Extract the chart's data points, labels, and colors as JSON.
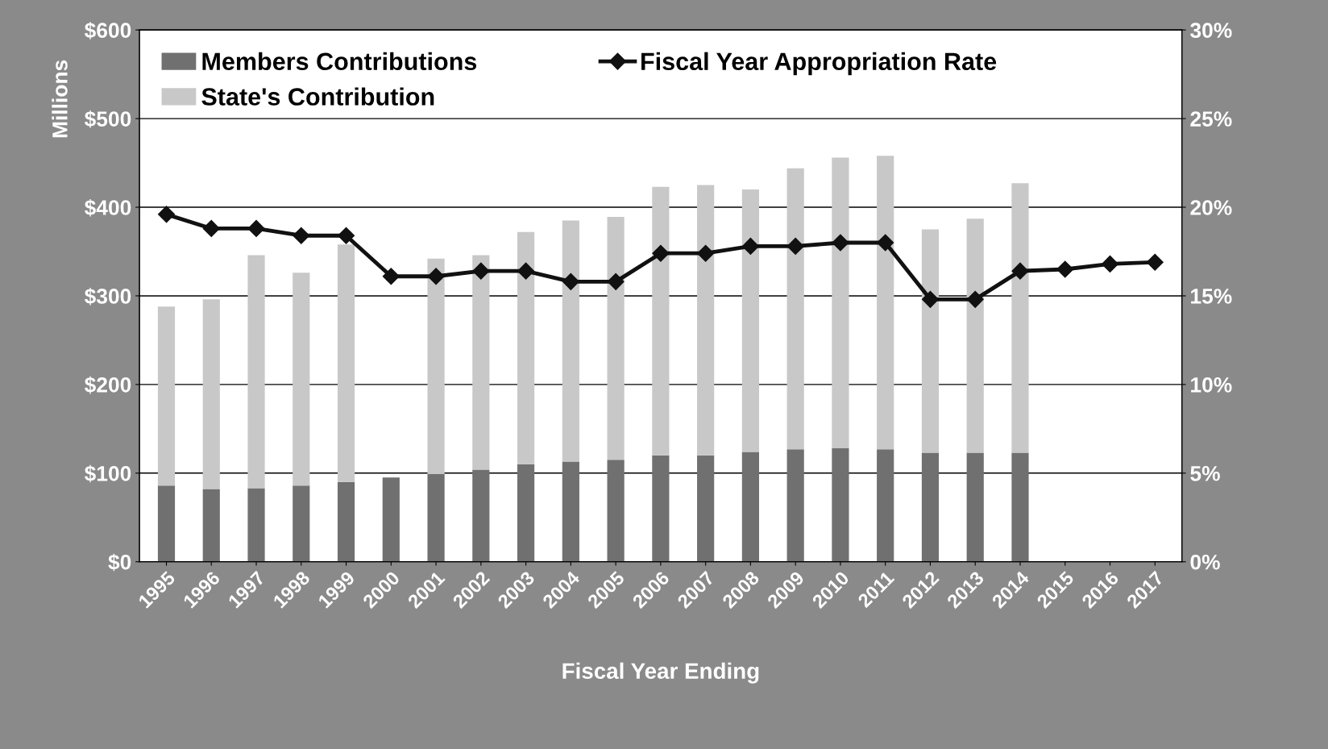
{
  "chart_data": {
    "type": "bar",
    "stacked": true,
    "xlabel": "Fiscal Year Ending",
    "ylabel": "Millions",
    "categories": [
      "1995",
      "1996",
      "1997",
      "1998",
      "1999",
      "2000",
      "2001",
      "2002",
      "2003",
      "2004",
      "2005",
      "2006",
      "2007",
      "2008",
      "2009",
      "2010",
      "2011",
      "2012",
      "2013",
      "2014",
      "2015",
      "2016",
      "2017"
    ],
    "series": [
      {
        "name": "Members Contributions",
        "color": "#707070",
        "values": [
          86,
          82,
          83,
          86,
          90,
          95,
          99,
          104,
          110,
          113,
          115,
          120,
          120,
          124,
          127,
          128,
          127,
          123,
          123,
          123,
          null,
          null,
          null
        ]
      },
      {
        "name": "State's Contribution",
        "color": "#c8c8c8",
        "values": [
          202,
          214,
          263,
          240,
          268,
          null,
          243,
          242,
          262,
          272,
          274,
          303,
          305,
          296,
          317,
          328,
          331,
          252,
          264,
          304,
          null,
          null,
          null
        ]
      },
      {
        "name": "Fiscal Year Appropriation Rate",
        "type": "line",
        "axis": "y2",
        "color": "#111111",
        "marker": "diamond",
        "values": [
          19.6,
          18.8,
          18.8,
          18.4,
          18.4,
          16.1,
          16.1,
          16.4,
          16.4,
          15.8,
          15.8,
          17.4,
          17.4,
          17.8,
          17.8,
          18.0,
          18.0,
          14.8,
          14.8,
          16.4,
          16.5,
          16.8,
          16.9
        ]
      }
    ],
    "ylim": [
      0,
      600
    ],
    "yticks": [
      {
        "value": 0,
        "label": "$0"
      },
      {
        "value": 100,
        "label": "$100"
      },
      {
        "value": 200,
        "label": "$200"
      },
      {
        "value": 300,
        "label": "$300"
      },
      {
        "value": 400,
        "label": "$400"
      },
      {
        "value": 500,
        "label": "$500"
      },
      {
        "value": 600,
        "label": "$600"
      }
    ],
    "y2lim": [
      0,
      30
    ],
    "y2ticks": [
      {
        "value": 0,
        "label": "0%"
      },
      {
        "value": 5,
        "label": "5%"
      },
      {
        "value": 10,
        "label": "10%"
      },
      {
        "value": 15,
        "label": "15%"
      },
      {
        "value": 20,
        "label": "20%"
      },
      {
        "value": 25,
        "label": "25%"
      },
      {
        "value": 30,
        "label": "30%"
      }
    ],
    "grid": "y",
    "legend": "top left"
  }
}
